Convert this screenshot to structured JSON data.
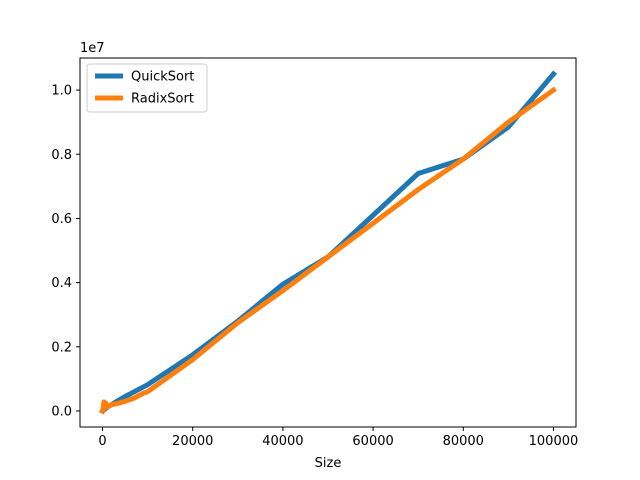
{
  "chart_data": {
    "type": "line",
    "title": "",
    "xlabel": "Size",
    "ylabel": "",
    "y_offset_text": "1e7",
    "y_scale": 10000000,
    "xlim": [
      -5000,
      105000
    ],
    "ylim": [
      -0.05,
      1.1
    ],
    "grid": false,
    "legend_position": "upper-left",
    "x_ticks": [
      {
        "value": 0,
        "label": "0"
      },
      {
        "value": 20000,
        "label": "20000"
      },
      {
        "value": 40000,
        "label": "40000"
      },
      {
        "value": 60000,
        "label": "60000"
      },
      {
        "value": 80000,
        "label": "80000"
      },
      {
        "value": 100000,
        "label": "100000"
      }
    ],
    "y_ticks": [
      {
        "value": 0.0,
        "label": "0.0"
      },
      {
        "value": 0.2,
        "label": "0.2"
      },
      {
        "value": 0.4,
        "label": "0.4"
      },
      {
        "value": 0.6,
        "label": "0.6"
      },
      {
        "value": 0.8,
        "label": "0.8"
      },
      {
        "value": 1.0,
        "label": "1.0"
      }
    ],
    "series": [
      {
        "name": "QuickSort",
        "color": "#1f77b4",
        "x": [
          10,
          100,
          500,
          1000,
          2000,
          5000,
          10000,
          20000,
          30000,
          40000,
          50000,
          60000,
          70000,
          80000,
          90000,
          100000
        ],
        "y": [
          0.0,
          0.002,
          0.006,
          0.011,
          0.02,
          0.045,
          0.082,
          0.175,
          0.28,
          0.395,
          0.48,
          0.61,
          0.74,
          0.785,
          0.885,
          1.05
        ]
      },
      {
        "name": "RadixSort",
        "color": "#ff7f0e",
        "x": [
          10,
          100,
          300,
          500,
          700,
          1000,
          2000,
          3000,
          5000,
          7000,
          9000,
          10000,
          20000,
          30000,
          40000,
          50000,
          60000,
          70000,
          80000,
          90000,
          100000
        ],
        "y": [
          0.0,
          0.006,
          0.028,
          0.01,
          0.025,
          0.012,
          0.02,
          0.022,
          0.03,
          0.04,
          0.055,
          0.06,
          0.16,
          0.275,
          0.375,
          0.48,
          0.585,
          0.69,
          0.785,
          0.9,
          1.0
        ]
      }
    ]
  }
}
